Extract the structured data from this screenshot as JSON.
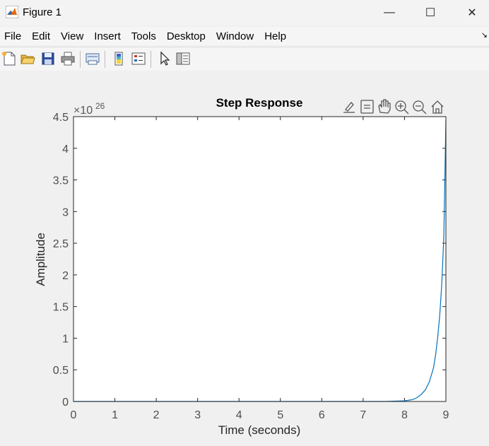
{
  "window": {
    "title": "Figure 1",
    "minimize_glyph": "—",
    "maximize_glyph": "☐",
    "close_glyph": "✕"
  },
  "menu": [
    "File",
    "Edit",
    "View",
    "Insert",
    "Tools",
    "Desktop",
    "Window",
    "Help"
  ],
  "toolbar_icons": [
    "new-figure-icon",
    "open-file-icon",
    "save-icon",
    "print-icon",
    "link-plot-icon",
    "insert-colorbar-icon",
    "insert-legend-icon",
    "edit-plot-arrow-icon",
    "property-inspector-icon"
  ],
  "axes_toolbar_icons": [
    "brush-icon",
    "data-tips-icon",
    "pan-hand-icon",
    "zoom-in-icon",
    "zoom-out-icon",
    "home-restore-icon"
  ],
  "chart_data": {
    "type": "line",
    "title": "Step Response",
    "xlabel": "Time (seconds)",
    "ylabel": "Amplitude",
    "exponent_base": "×10",
    "exponent_power": "26",
    "xlim": [
      0,
      9
    ],
    "ylim": [
      0,
      4.5
    ],
    "xticks": [
      "0",
      "1",
      "2",
      "3",
      "4",
      "5",
      "6",
      "7",
      "8",
      "9"
    ],
    "yticks": [
      "0",
      "0.5",
      "1",
      "1.5",
      "2",
      "2.5",
      "3",
      "3.5",
      "4",
      "4.5"
    ],
    "grid": false,
    "line_color": "#0072bd",
    "series": [
      {
        "x": [
          0,
          7.5,
          8.0,
          8.2,
          8.3,
          8.4,
          8.5,
          8.6,
          8.7,
          8.75,
          8.8,
          8.85,
          8.9,
          8.95,
          9.0
        ],
        "y": [
          0,
          0.0,
          0.01,
          0.03,
          0.06,
          0.11,
          0.18,
          0.31,
          0.53,
          0.73,
          1.0,
          1.35,
          1.85,
          2.6,
          4.45
        ]
      }
    ]
  }
}
